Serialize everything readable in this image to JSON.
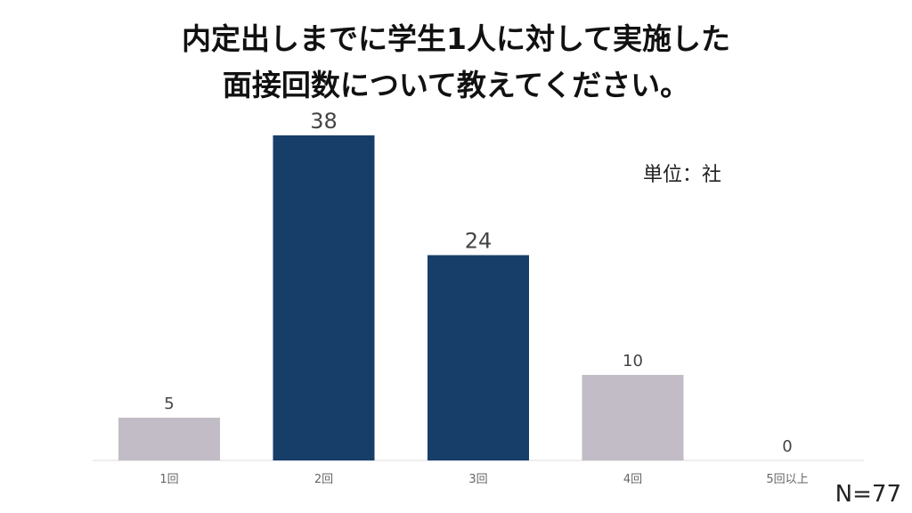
{
  "title_line1": "内定出しまでに学生1人に対して実施した",
  "title_line2": "面接回数について教えてください。",
  "unit_label": "単位：社",
  "sample_size": "N=77",
  "chart_data": {
    "type": "bar",
    "categories": [
      "1回",
      "2回",
      "3回",
      "4回",
      "5回以上"
    ],
    "values": [
      5,
      38,
      24,
      10,
      0
    ],
    "value_labels": [
      "5",
      "38",
      "24",
      "10",
      "0"
    ],
    "colors": [
      "#c2bcc6",
      "#173e69",
      "#173e69",
      "#c2bcc6",
      "#c2bcc6"
    ],
    "ylim": [
      0,
      38
    ],
    "grid": false,
    "legend": false
  }
}
